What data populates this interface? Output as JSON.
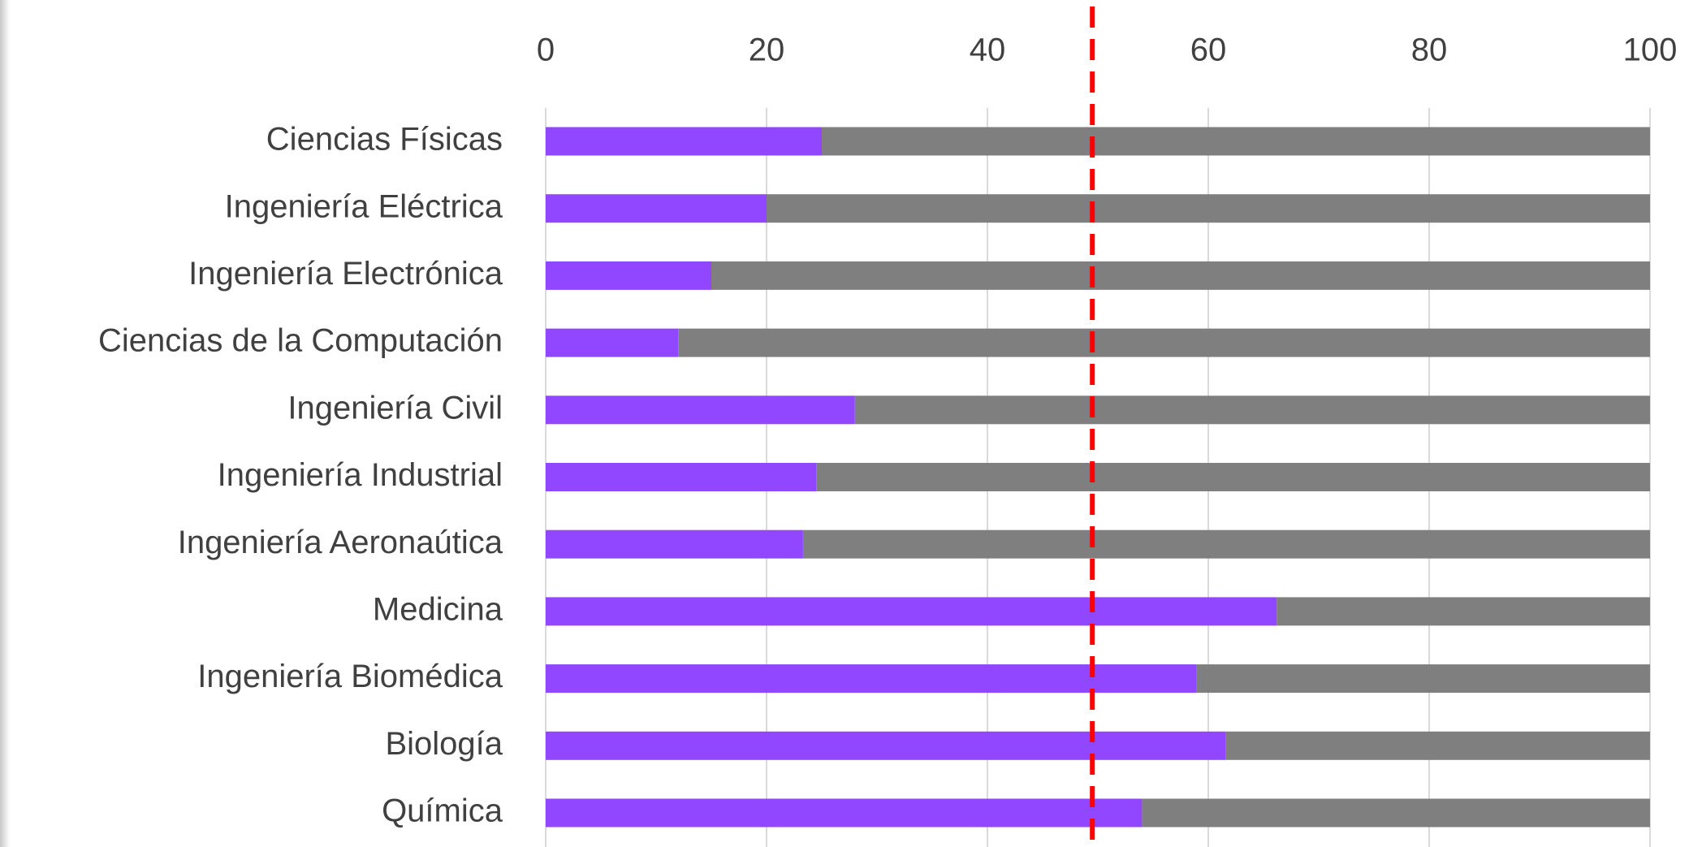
{
  "chart_data": {
    "type": "stacked_barh",
    "categories": [
      "Ciencias Físicas",
      "Ingeniería Eléctrica",
      "Ingeniería Electrónica",
      "Ciencias de la Computación",
      "Ingeniería Civil",
      "Ingeniería Industrial",
      "Ingeniería Aeronaútica",
      "Medicina",
      "Ingeniería Biomédica",
      "Biología",
      "Química"
    ],
    "series": [
      {
        "color": "#9146ff",
        "values": [
          25,
          20,
          15,
          12,
          28,
          24.5,
          23.3,
          66.2,
          58.9,
          61.6,
          54
        ]
      },
      {
        "color": "#7f7f7f",
        "values": [
          75,
          80,
          85,
          88,
          72,
          75.5,
          76.7,
          33.8,
          41.1,
          38.4,
          46
        ]
      }
    ],
    "xlim": [
      0,
      100
    ],
    "xticks": [
      0,
      20,
      40,
      60,
      80,
      100
    ],
    "grid": true,
    "reference_line": {
      "value": 49.5,
      "color": "#ff0000"
    }
  }
}
